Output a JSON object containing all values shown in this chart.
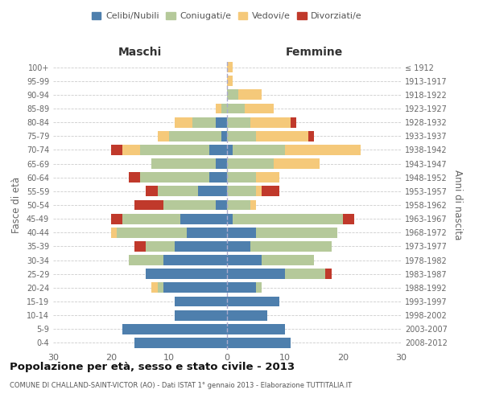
{
  "age_groups": [
    "0-4",
    "5-9",
    "10-14",
    "15-19",
    "20-24",
    "25-29",
    "30-34",
    "35-39",
    "40-44",
    "45-49",
    "50-54",
    "55-59",
    "60-64",
    "65-69",
    "70-74",
    "75-79",
    "80-84",
    "85-89",
    "90-94",
    "95-99",
    "100+"
  ],
  "birth_years": [
    "2008-2012",
    "2003-2007",
    "1998-2002",
    "1993-1997",
    "1988-1992",
    "1983-1987",
    "1978-1982",
    "1973-1977",
    "1968-1972",
    "1963-1967",
    "1958-1962",
    "1953-1957",
    "1948-1952",
    "1943-1947",
    "1938-1942",
    "1933-1937",
    "1928-1932",
    "1923-1927",
    "1918-1922",
    "1913-1917",
    "≤ 1912"
  ],
  "colors": {
    "celibi": "#4e7fad",
    "coniugati": "#b5c99a",
    "vedovi": "#f5c97a",
    "divorziati": "#c0392b"
  },
  "maschi": {
    "celibi": [
      16,
      18,
      9,
      9,
      11,
      14,
      11,
      9,
      7,
      8,
      2,
      5,
      3,
      2,
      3,
      1,
      2,
      0,
      0,
      0,
      0
    ],
    "coniugati": [
      0,
      0,
      0,
      0,
      1,
      0,
      6,
      5,
      12,
      10,
      9,
      7,
      12,
      11,
      12,
      9,
      4,
      1,
      0,
      0,
      0
    ],
    "vedovi": [
      0,
      0,
      0,
      0,
      1,
      0,
      0,
      0,
      1,
      0,
      0,
      0,
      0,
      0,
      3,
      2,
      3,
      1,
      0,
      0,
      0
    ],
    "divorziati": [
      0,
      0,
      0,
      0,
      0,
      0,
      0,
      2,
      0,
      2,
      5,
      2,
      2,
      0,
      2,
      0,
      0,
      0,
      0,
      0,
      0
    ]
  },
  "femmine": {
    "celibi": [
      11,
      10,
      7,
      9,
      5,
      10,
      6,
      4,
      5,
      1,
      0,
      0,
      0,
      0,
      1,
      0,
      0,
      0,
      0,
      0,
      0
    ],
    "coniugati": [
      0,
      0,
      0,
      0,
      1,
      7,
      9,
      14,
      14,
      19,
      4,
      5,
      5,
      8,
      9,
      5,
      4,
      3,
      2,
      0,
      0
    ],
    "vedovi": [
      0,
      0,
      0,
      0,
      0,
      0,
      0,
      0,
      0,
      0,
      1,
      1,
      4,
      8,
      13,
      9,
      7,
      5,
      4,
      1,
      1
    ],
    "divorziati": [
      0,
      0,
      0,
      0,
      0,
      1,
      0,
      0,
      0,
      2,
      0,
      3,
      0,
      0,
      0,
      1,
      1,
      0,
      0,
      0,
      0
    ]
  },
  "xlim": 30,
  "title": "Popolazione per età, sesso e stato civile - 2013",
  "subtitle": "COMUNE DI CHALLAND-SAINT-VICTOR (AO) - Dati ISTAT 1° gennaio 2013 - Elaborazione TUTTITALIA.IT",
  "ylabel": "Fasce di età",
  "ylabel_right": "Anni di nascita",
  "legend_labels": [
    "Celibi/Nubili",
    "Coniugati/e",
    "Vedovi/e",
    "Divorziati/e"
  ],
  "maschi_label": "Maschi",
  "femmine_label": "Femmine"
}
